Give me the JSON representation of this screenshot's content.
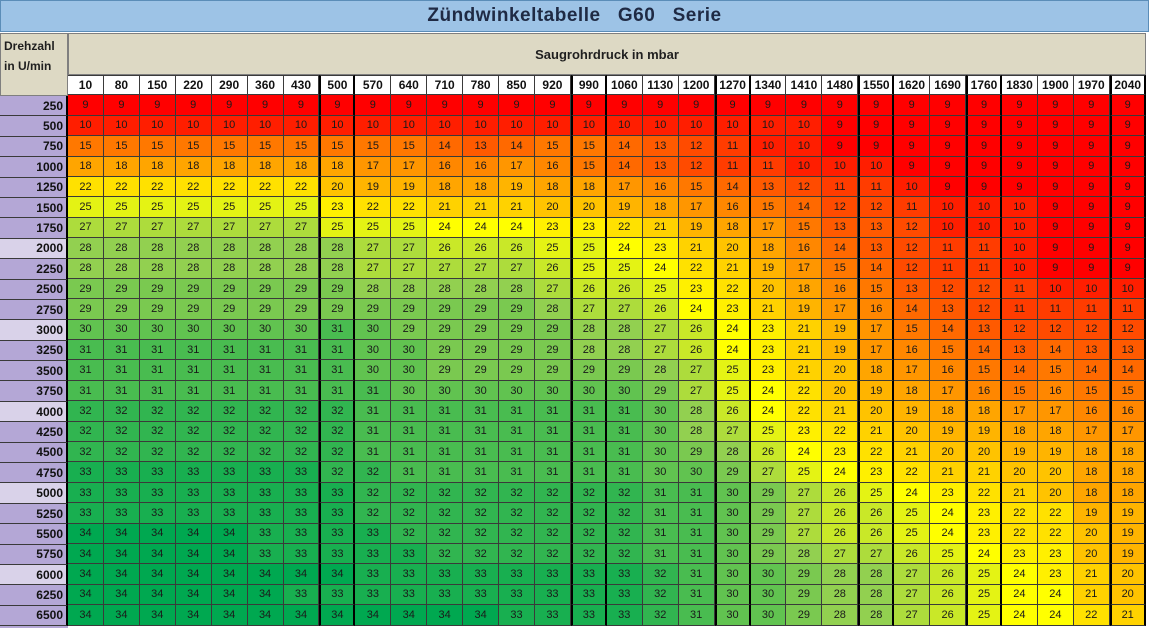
{
  "title": "Zündwinkeltabelle   G60   Serie",
  "row_header_label_1": "Drehzahl",
  "row_header_label_2": "in U/min",
  "column_group_label": "Saugrohrdruck in mbar",
  "pressures": [
    "10",
    "80",
    "150",
    "220",
    "290",
    "360",
    "430",
    "500",
    "570",
    "640",
    "710",
    "780",
    "850",
    "920",
    "990",
    "1060",
    "1130",
    "1200",
    "1270",
    "1340",
    "1410",
    "1480",
    "1550",
    "1620",
    "1690",
    "1760",
    "1830",
    "1900",
    "1970",
    "2040"
  ],
  "thick_columns": [
    "500",
    "990",
    "1270",
    "1550",
    "1760",
    "2040"
  ],
  "highlighted_rpms": [
    "2000",
    "3000",
    "4000",
    "5000",
    "6000"
  ],
  "rpms": [
    "250",
    "500",
    "750",
    "1000",
    "1250",
    "1500",
    "1750",
    "2000",
    "2250",
    "2500",
    "2750",
    "3000",
    "3250",
    "3500",
    "3750",
    "4000",
    "4250",
    "4500",
    "4750",
    "5000",
    "5250",
    "5500",
    "5750",
    "6000",
    "6250",
    "6500"
  ],
  "values": [
    [
      9,
      9,
      9,
      9,
      9,
      9,
      9,
      9,
      9,
      9,
      9,
      9,
      9,
      9,
      9,
      9,
      9,
      9,
      9,
      9,
      9,
      9,
      9,
      9,
      9,
      9,
      9,
      9,
      9,
      9
    ],
    [
      10,
      10,
      10,
      10,
      10,
      10,
      10,
      10,
      10,
      10,
      10,
      10,
      10,
      10,
      10,
      10,
      10,
      10,
      10,
      10,
      10,
      9,
      9,
      9,
      9,
      9,
      9,
      9,
      9,
      9
    ],
    [
      15,
      15,
      15,
      15,
      15,
      15,
      15,
      15,
      15,
      15,
      14,
      13,
      14,
      15,
      15,
      14,
      13,
      12,
      11,
      10,
      10,
      9,
      9,
      9,
      9,
      9,
      9,
      9,
      9,
      9
    ],
    [
      18,
      18,
      18,
      18,
      18,
      18,
      18,
      18,
      17,
      17,
      16,
      16,
      17,
      16,
      15,
      14,
      13,
      12,
      11,
      11,
      10,
      10,
      10,
      9,
      9,
      9,
      9,
      9,
      9,
      9
    ],
    [
      22,
      22,
      22,
      22,
      22,
      22,
      22,
      20,
      19,
      19,
      18,
      18,
      19,
      18,
      18,
      17,
      16,
      15,
      14,
      13,
      12,
      11,
      11,
      10,
      9,
      9,
      9,
      9,
      9,
      9
    ],
    [
      25,
      25,
      25,
      25,
      25,
      25,
      25,
      23,
      22,
      22,
      21,
      21,
      21,
      20,
      20,
      19,
      18,
      17,
      16,
      15,
      14,
      12,
      12,
      11,
      10,
      10,
      10,
      9,
      9,
      9
    ],
    [
      27,
      27,
      27,
      27,
      27,
      27,
      27,
      25,
      25,
      25,
      24,
      24,
      24,
      23,
      23,
      22,
      21,
      19,
      18,
      17,
      15,
      13,
      13,
      12,
      10,
      10,
      10,
      9,
      9,
      9
    ],
    [
      28,
      28,
      28,
      28,
      28,
      28,
      28,
      28,
      27,
      27,
      26,
      26,
      26,
      25,
      25,
      24,
      23,
      21,
      20,
      18,
      16,
      14,
      13,
      12,
      11,
      11,
      10,
      9,
      9,
      9
    ],
    [
      28,
      28,
      28,
      28,
      28,
      28,
      28,
      28,
      27,
      27,
      27,
      27,
      27,
      26,
      25,
      25,
      24,
      22,
      21,
      19,
      17,
      15,
      14,
      12,
      11,
      11,
      10,
      9,
      9,
      9
    ],
    [
      29,
      29,
      29,
      29,
      29,
      29,
      29,
      29,
      28,
      28,
      28,
      28,
      28,
      27,
      26,
      26,
      25,
      23,
      22,
      20,
      18,
      16,
      15,
      13,
      12,
      12,
      11,
      10,
      10,
      10
    ],
    [
      29,
      29,
      29,
      29,
      29,
      29,
      29,
      29,
      29,
      29,
      29,
      29,
      29,
      28,
      27,
      27,
      26,
      24,
      23,
      21,
      19,
      17,
      16,
      14,
      13,
      12,
      11,
      11,
      11,
      11
    ],
    [
      30,
      30,
      30,
      30,
      30,
      30,
      30,
      31,
      30,
      29,
      29,
      29,
      29,
      29,
      28,
      28,
      27,
      26,
      24,
      23,
      21,
      19,
      17,
      15,
      14,
      13,
      12,
      12,
      12,
      12
    ],
    [
      31,
      31,
      31,
      31,
      31,
      31,
      31,
      31,
      30,
      30,
      29,
      29,
      29,
      29,
      28,
      28,
      27,
      26,
      24,
      23,
      21,
      19,
      17,
      16,
      15,
      14,
      13,
      14,
      13,
      13
    ],
    [
      31,
      31,
      31,
      31,
      31,
      31,
      31,
      31,
      30,
      30,
      29,
      29,
      29,
      29,
      29,
      29,
      28,
      27,
      25,
      23,
      21,
      20,
      18,
      17,
      16,
      15,
      14,
      15,
      14,
      14
    ],
    [
      31,
      31,
      31,
      31,
      31,
      31,
      31,
      31,
      31,
      30,
      30,
      30,
      30,
      30,
      30,
      30,
      29,
      27,
      25,
      24,
      22,
      20,
      19,
      18,
      17,
      16,
      15,
      16,
      15,
      15
    ],
    [
      32,
      32,
      32,
      32,
      32,
      32,
      32,
      32,
      31,
      31,
      31,
      31,
      31,
      31,
      31,
      31,
      30,
      28,
      26,
      24,
      22,
      21,
      20,
      19,
      18,
      18,
      17,
      17,
      16,
      16
    ],
    [
      32,
      32,
      32,
      32,
      32,
      32,
      32,
      32,
      31,
      31,
      31,
      31,
      31,
      31,
      31,
      31,
      30,
      28,
      27,
      25,
      23,
      22,
      21,
      20,
      19,
      19,
      18,
      18,
      17,
      17
    ],
    [
      32,
      32,
      32,
      32,
      32,
      32,
      32,
      32,
      31,
      31,
      31,
      31,
      31,
      31,
      31,
      31,
      30,
      29,
      28,
      26,
      24,
      23,
      22,
      21,
      20,
      20,
      19,
      19,
      18,
      18
    ],
    [
      33,
      33,
      33,
      33,
      33,
      33,
      33,
      32,
      32,
      31,
      31,
      31,
      31,
      31,
      31,
      31,
      30,
      30,
      29,
      27,
      25,
      24,
      23,
      22,
      21,
      21,
      20,
      20,
      18,
      18
    ],
    [
      33,
      33,
      33,
      33,
      33,
      33,
      33,
      33,
      32,
      32,
      32,
      32,
      32,
      32,
      32,
      32,
      31,
      31,
      30,
      29,
      27,
      26,
      25,
      24,
      23,
      22,
      21,
      20,
      18,
      18
    ],
    [
      33,
      33,
      33,
      33,
      33,
      33,
      33,
      33,
      32,
      32,
      32,
      32,
      32,
      32,
      32,
      32,
      31,
      31,
      30,
      29,
      27,
      26,
      26,
      25,
      24,
      23,
      22,
      22,
      19,
      19
    ],
    [
      34,
      34,
      34,
      34,
      34,
      33,
      33,
      33,
      33,
      32,
      32,
      32,
      32,
      32,
      32,
      32,
      31,
      31,
      30,
      29,
      27,
      26,
      26,
      25,
      24,
      23,
      22,
      22,
      20,
      19
    ],
    [
      34,
      34,
      34,
      34,
      34,
      33,
      33,
      33,
      33,
      33,
      32,
      32,
      32,
      32,
      32,
      32,
      31,
      31,
      30,
      29,
      28,
      27,
      27,
      26,
      25,
      24,
      23,
      23,
      20,
      19
    ],
    [
      34,
      34,
      34,
      34,
      34,
      34,
      34,
      34,
      33,
      33,
      33,
      33,
      33,
      33,
      33,
      33,
      32,
      31,
      30,
      30,
      29,
      28,
      28,
      27,
      26,
      25,
      24,
      23,
      21,
      20
    ],
    [
      34,
      34,
      34,
      34,
      34,
      34,
      33,
      33,
      33,
      33,
      33,
      33,
      33,
      33,
      33,
      33,
      32,
      31,
      30,
      30,
      29,
      28,
      28,
      27,
      26,
      25,
      24,
      24,
      21,
      20
    ],
    [
      34,
      34,
      34,
      34,
      34,
      34,
      34,
      34,
      34,
      34,
      34,
      34,
      33,
      33,
      33,
      33,
      32,
      31,
      30,
      30,
      29,
      28,
      28,
      27,
      26,
      25,
      24,
      24,
      22,
      21
    ]
  ],
  "colors": {
    "red": "#ff0000",
    "orange": "#ff8c00",
    "yellow": "#ffff00",
    "light_green": "#92d050",
    "green": "#00b050",
    "title_bg": "#9dc3e6",
    "header_bg": "#ddd9c4",
    "rpm_bg": "#b4a7d6"
  }
}
